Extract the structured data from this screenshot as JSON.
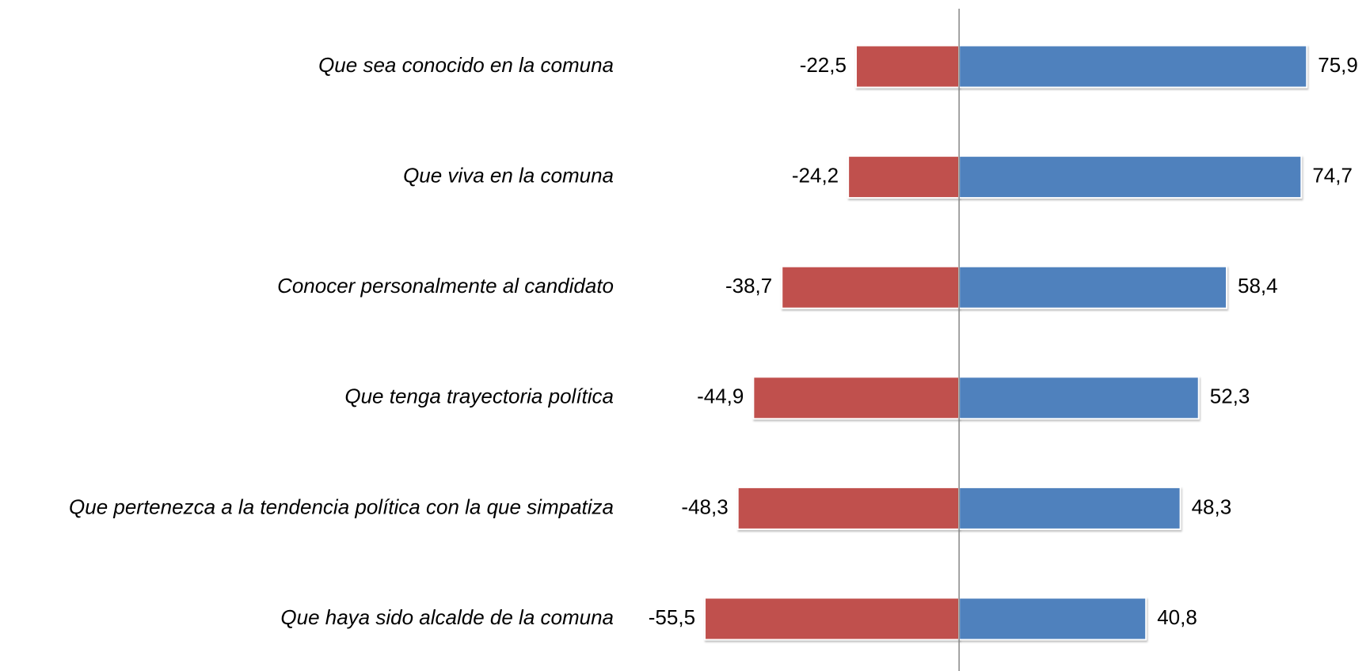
{
  "chart_data": {
    "type": "diverging-bar",
    "categories": [
      "Que sea conocido en la comuna",
      "Que viva en la comuna",
      "Conocer personalmente al candidato",
      "Que tenga trayectoria política",
      "Que pertenezca a la tendencia política con la que simpatiza",
      "Que haya sido alcalde de la comuna"
    ],
    "series": [
      {
        "color": "#c0504d",
        "values": [
          -22.5,
          -24.2,
          -38.7,
          -44.9,
          -48.3,
          -55.5
        ],
        "value_labels": [
          "-22,5",
          "-24,2",
          "-38,7",
          "-44,9",
          "-48,3",
          "-55,5"
        ]
      },
      {
        "color": "#4f81bd",
        "values": [
          75.9,
          74.7,
          58.4,
          52.3,
          48.3,
          40.8
        ],
        "value_labels": [
          "75,9",
          "74,7",
          "58,4",
          "52,3",
          "48,3",
          "40,8"
        ]
      }
    ],
    "xlim": [
      -60,
      80
    ]
  }
}
